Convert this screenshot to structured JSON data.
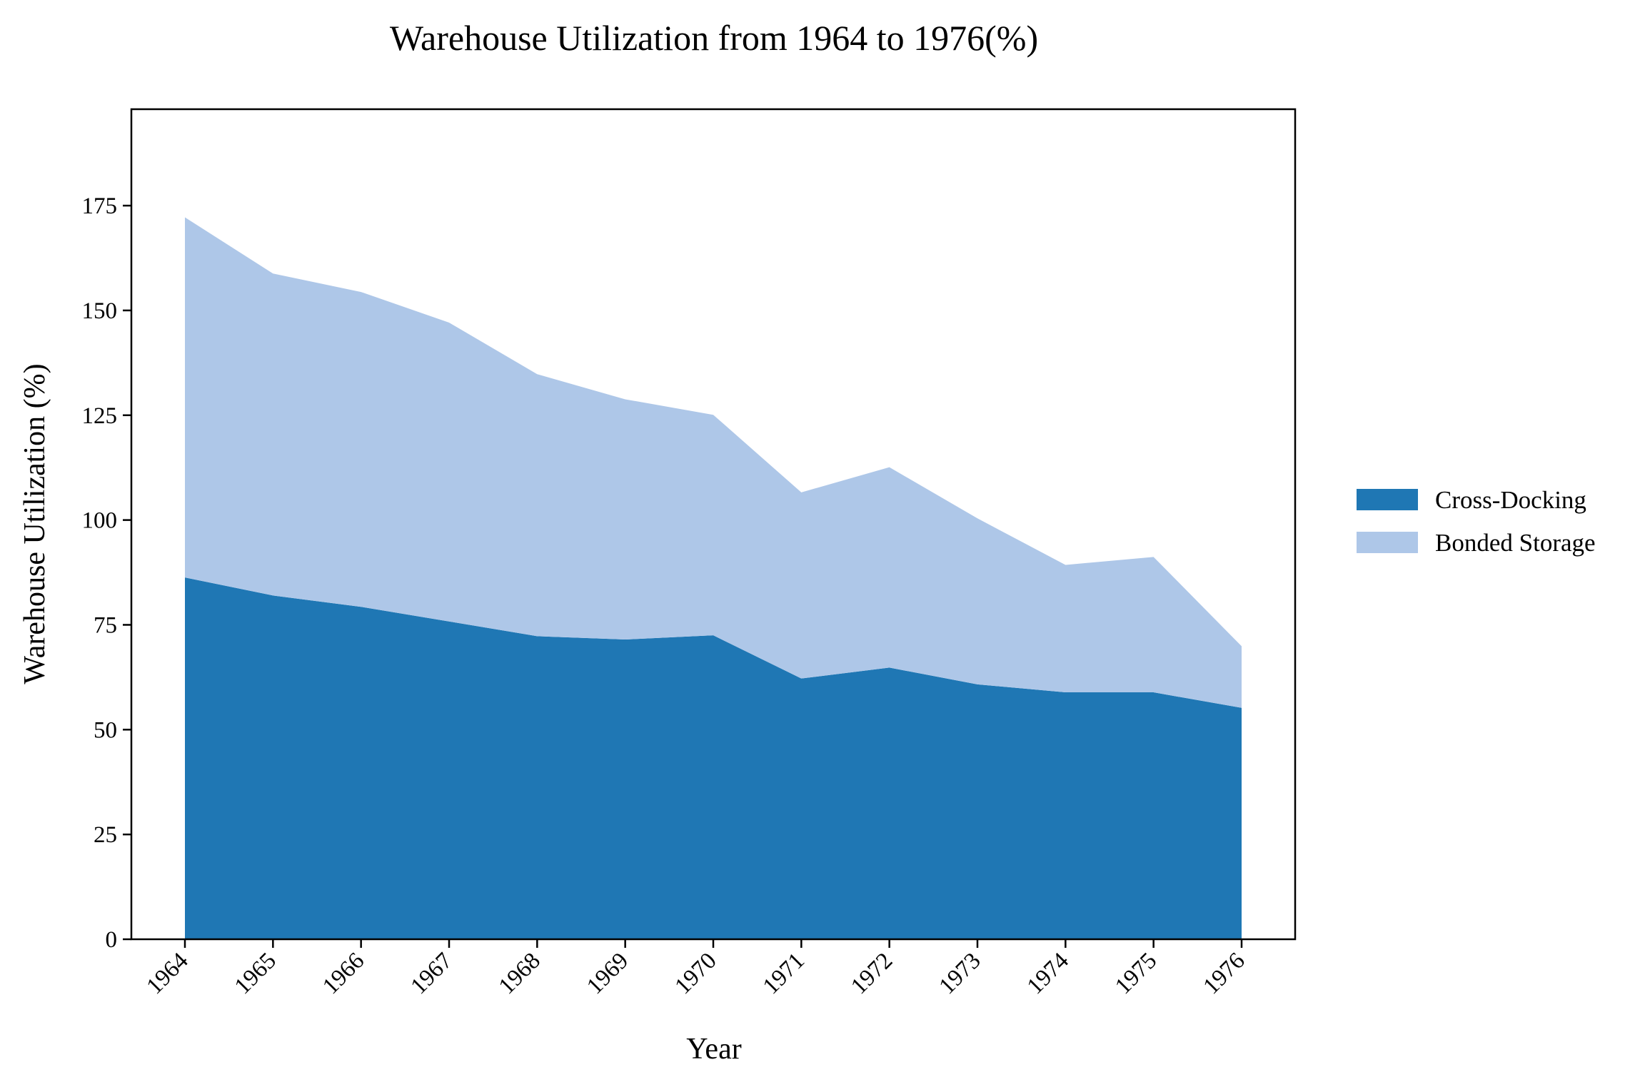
{
  "chart_data": {
    "type": "area",
    "stacked": true,
    "title": "Warehouse Utilization from 1964 to 1976(%)",
    "xlabel": "Year",
    "ylabel": "Warehouse Utilization (%)",
    "categories": [
      "1964",
      "1965",
      "1966",
      "1967",
      "1968",
      "1969",
      "1970",
      "1971",
      "1972",
      "1973",
      "1974",
      "1975",
      "1976"
    ],
    "yticks": [
      0,
      25,
      50,
      75,
      100,
      125,
      150,
      175
    ],
    "ylim": [
      0,
      198
    ],
    "grid": false,
    "legend_position": "right",
    "series": [
      {
        "name": "Cross-Docking",
        "color": "#1f77b4",
        "values": [
          86.3,
          82.0,
          79.3,
          75.8,
          72.3,
          71.5,
          72.5,
          62.2,
          64.8,
          60.8,
          58.9,
          58.9,
          55.2
        ]
      },
      {
        "name": "Bonded Storage",
        "color": "#aec7e8",
        "values": [
          85.9,
          76.8,
          75.1,
          71.3,
          62.5,
          57.3,
          52.6,
          44.4,
          47.8,
          39.6,
          30.4,
          32.3,
          14.7
        ]
      }
    ]
  }
}
